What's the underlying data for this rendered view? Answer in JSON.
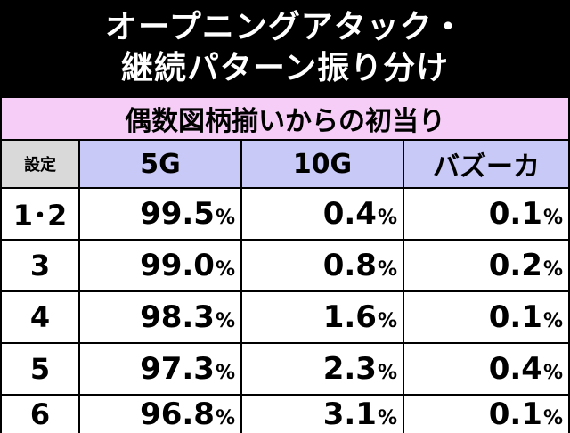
{
  "title": {
    "line1": "オープニングアタック・",
    "line2": "継続パターン振り分け"
  },
  "table": {
    "subheader": "偶数図柄揃いからの初当り",
    "headers": {
      "setting": "設定",
      "col1": "5G",
      "col2": "10G",
      "col3": "バズーカ"
    },
    "percent_sign": "%",
    "rows": [
      {
        "setting": "1･2",
        "v1": "99.5",
        "v2": "0.4",
        "v3": "0.1"
      },
      {
        "setting": "3",
        "v1": "99.0",
        "v2": "0.8",
        "v3": "0.2"
      },
      {
        "setting": "4",
        "v1": "98.3",
        "v2": "1.6",
        "v3": "0.1"
      },
      {
        "setting": "5",
        "v1": "97.3",
        "v2": "2.3",
        "v3": "0.4"
      },
      {
        "setting": "6",
        "v1": "96.8",
        "v2": "3.1",
        "v3": "0.1"
      }
    ]
  },
  "colors": {
    "subheader_bg": "#f6cdf6",
    "column_header_bg": "#c9c9f7",
    "setting_header_bg": "#d9d9d9"
  }
}
